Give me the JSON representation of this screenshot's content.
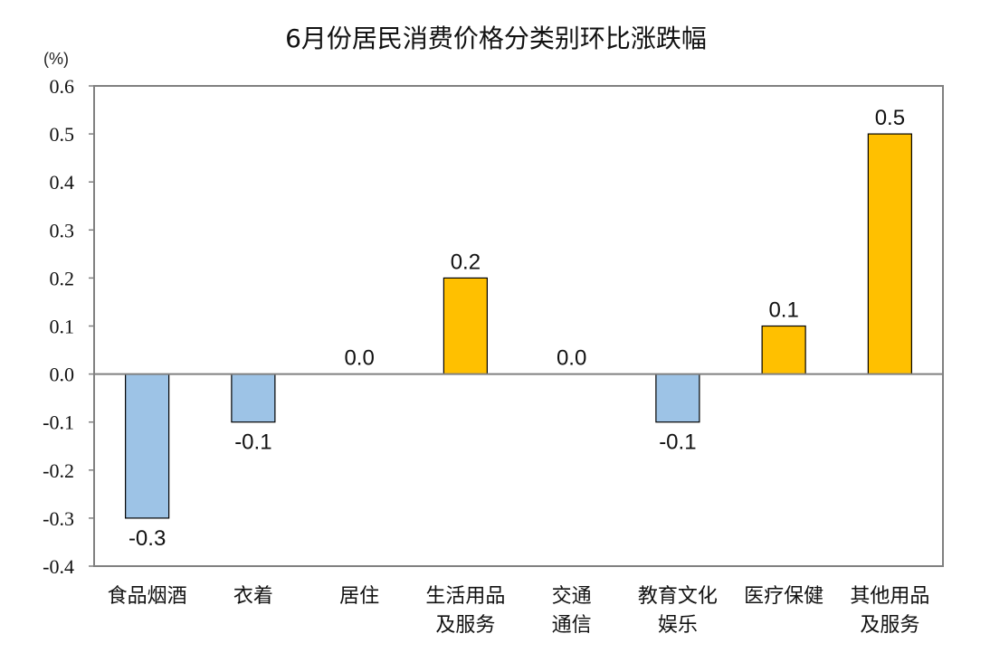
{
  "chart_data": {
    "type": "bar",
    "title": "6月份居民消费价格分类别环比涨跌幅",
    "unit_label": "(%)",
    "ylim": [
      -0.4,
      0.6
    ],
    "y_ticks": [
      "0.6",
      "0.5",
      "0.4",
      "0.3",
      "0.2",
      "0.1",
      "0.0",
      "-0.1",
      "-0.2",
      "-0.3",
      "-0.4"
    ],
    "y_tick_values": [
      0.6,
      0.5,
      0.4,
      0.3,
      0.2,
      0.1,
      0.0,
      -0.1,
      -0.2,
      -0.3,
      -0.4
    ],
    "categories": [
      [
        "食品烟酒"
      ],
      [
        "衣着"
      ],
      [
        "居住"
      ],
      [
        "生活用品",
        "及服务"
      ],
      [
        "交通",
        "通信"
      ],
      [
        "教育文化",
        "娱乐"
      ],
      [
        "医疗保健"
      ],
      [
        "其他用品",
        "及服务"
      ]
    ],
    "values": [
      -0.3,
      -0.1,
      0.0,
      0.2,
      0.0,
      -0.1,
      0.1,
      0.5
    ],
    "value_labels": [
      "-0.3",
      "-0.1",
      "0.0",
      "0.2",
      "0.0",
      "-0.1",
      "0.1",
      "0.5"
    ],
    "colors": {
      "positive": "#FFC000",
      "negative": "#9DC3E6",
      "border": "#000000",
      "axis": "#808080"
    },
    "grid": false
  }
}
